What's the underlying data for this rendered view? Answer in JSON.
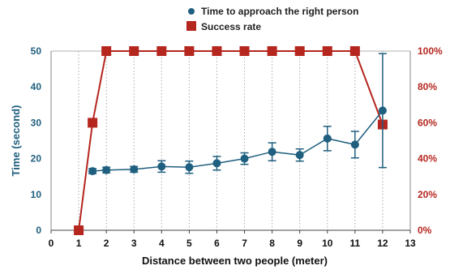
{
  "chart_data": {
    "type": "line",
    "xlabel": "Distance between two people (meter)",
    "ylabel": "Time (second)",
    "xlim": [
      0,
      13
    ],
    "ylim": [
      0,
      50
    ],
    "y2lim": [
      0,
      100
    ],
    "x_ticks": [
      "0",
      "1",
      "2",
      "3",
      "4",
      "5",
      "6",
      "7",
      "8",
      "9",
      "10",
      "11",
      "12",
      "13"
    ],
    "y_ticks": [
      "0",
      "10",
      "20",
      "30",
      "40",
      "50"
    ],
    "y2_ticks": [
      "0%",
      "20%",
      "40%",
      "60%",
      "80%",
      "100%"
    ],
    "grid": "vertical-dotted",
    "legend_position": "top-center",
    "series": [
      {
        "name": "Time to approach the right person",
        "axis": "left",
        "color": "#1f5f7f",
        "marker": "circle",
        "x": [
          1.5,
          2,
          3,
          4,
          5,
          6,
          7,
          8,
          9,
          10,
          11,
          12
        ],
        "y": [
          16.5,
          16.8,
          17.0,
          17.8,
          17.6,
          18.7,
          20.0,
          21.9,
          21.0,
          25.6,
          23.9,
          33.4
        ],
        "err": [
          0.7,
          0.8,
          0.8,
          1.6,
          1.7,
          1.9,
          1.6,
          2.5,
          1.7,
          3.4,
          3.7,
          15.9
        ]
      },
      {
        "name": "Success rate",
        "axis": "right",
        "color": "#b5261e",
        "marker": "square",
        "x": [
          1,
          1.5,
          2,
          3,
          4,
          5,
          6,
          7,
          8,
          9,
          10,
          11,
          12
        ],
        "y": [
          0,
          60,
          100,
          100,
          100,
          100,
          100,
          100,
          100,
          100,
          100,
          100,
          59
        ]
      }
    ]
  }
}
